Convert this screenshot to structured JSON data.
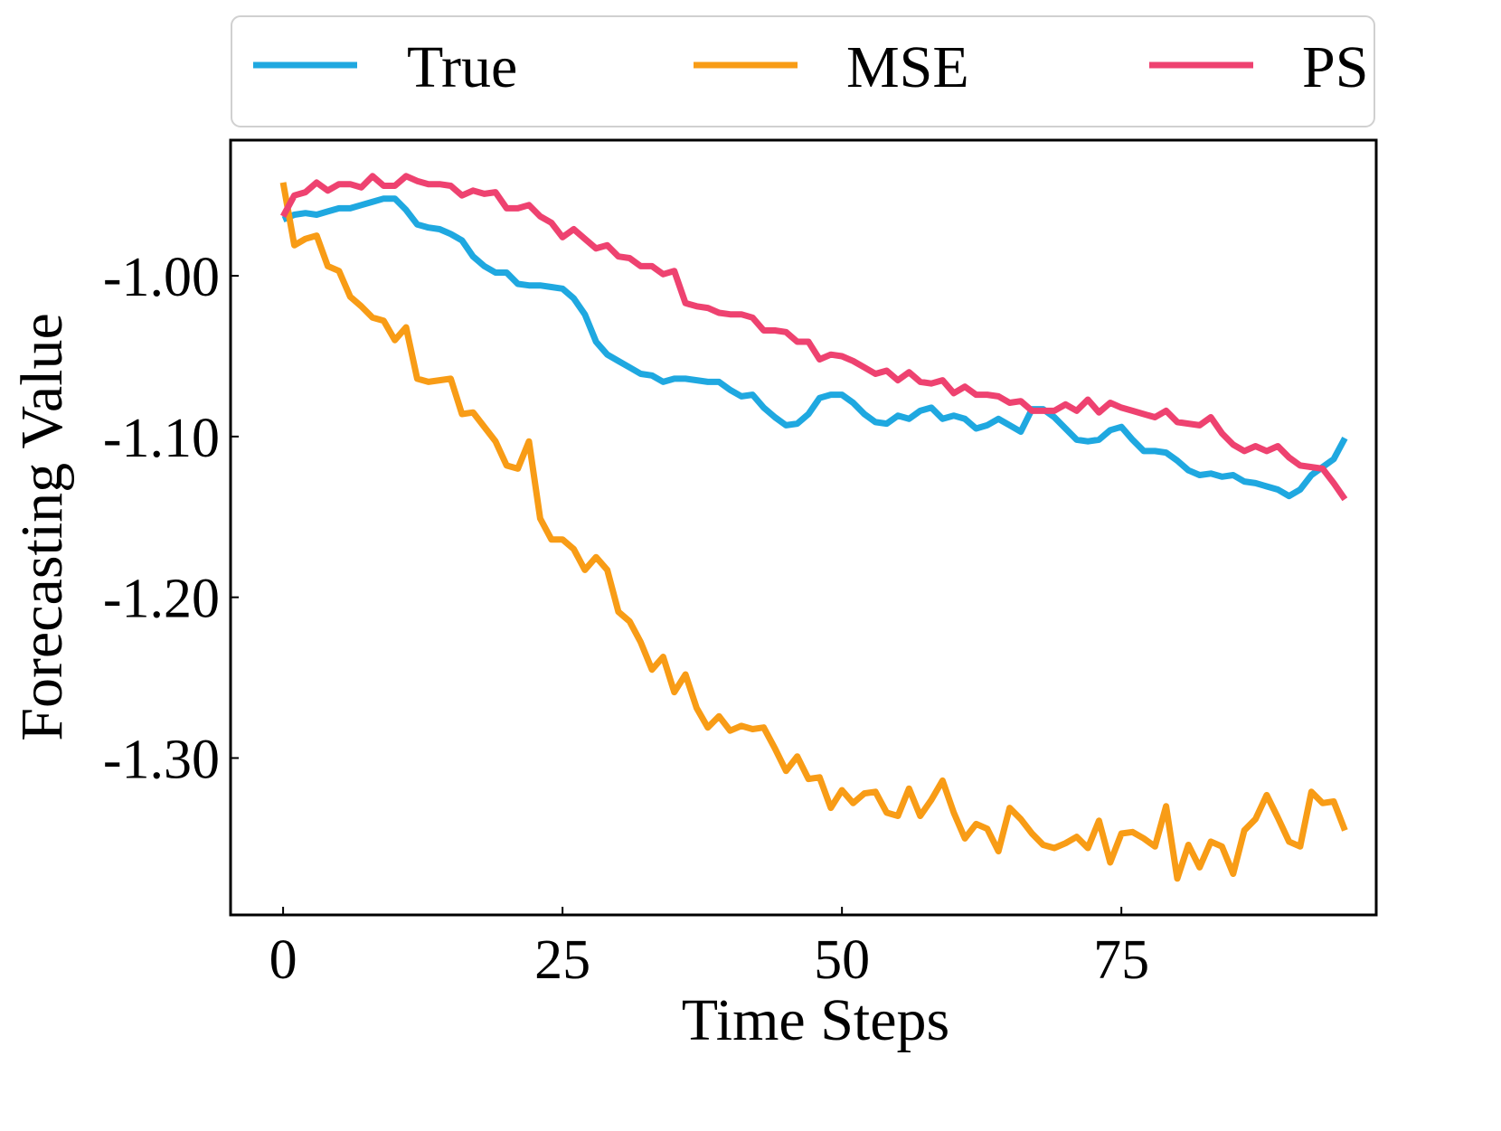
{
  "chart_data": {
    "type": "line",
    "title": "",
    "xlabel": "Time Steps",
    "ylabel": "Forecasting Value",
    "xlim": [
      -4.7,
      97.8
    ],
    "ylim": [
      -1.3976,
      -0.9156
    ],
    "xticks": [
      0,
      25,
      50,
      75
    ],
    "xtick_labels": [
      "0",
      "25",
      "50",
      "75"
    ],
    "yticks": [
      -1.0,
      -1.1,
      -1.2,
      -1.3
    ],
    "ytick_labels": [
      "-1.00",
      "-1.10",
      "-1.20",
      "-1.30"
    ],
    "grid": false,
    "legend": {
      "placement": "top-outside",
      "columns": 3
    },
    "x": [
      0,
      1,
      2,
      3,
      4,
      5,
      6,
      7,
      8,
      9,
      10,
      11,
      12,
      13,
      14,
      15,
      16,
      17,
      18,
      19,
      20,
      21,
      22,
      23,
      24,
      25,
      26,
      27,
      28,
      29,
      30,
      31,
      32,
      33,
      34,
      35,
      36,
      37,
      38,
      39,
      40,
      41,
      42,
      43,
      44,
      45,
      46,
      47,
      48,
      49,
      50,
      51,
      52,
      53,
      54,
      55,
      56,
      57,
      58,
      59,
      60,
      61,
      62,
      63,
      64,
      65,
      66,
      67,
      68,
      69,
      70,
      71,
      72,
      73,
      74,
      75,
      76,
      77,
      78,
      79,
      80,
      81,
      82,
      83,
      84,
      85,
      86,
      87,
      88,
      89,
      90,
      91,
      92,
      93,
      94,
      95
    ],
    "series": [
      {
        "name": "True",
        "color": "#1fa8e0",
        "values": [
          -0.965,
          -0.962,
          -0.961,
          -0.962,
          -0.96,
          -0.958,
          -0.958,
          -0.956,
          -0.954,
          -0.952,
          -0.952,
          -0.959,
          -0.968,
          -0.97,
          -0.971,
          -0.974,
          -0.978,
          -0.988,
          -0.994,
          -0.998,
          -0.998,
          -1.005,
          -1.006,
          -1.006,
          -1.007,
          -1.008,
          -1.014,
          -1.024,
          -1.041,
          -1.049,
          -1.053,
          -1.057,
          -1.061,
          -1.062,
          -1.066,
          -1.064,
          -1.064,
          -1.065,
          -1.066,
          -1.066,
          -1.071,
          -1.075,
          -1.074,
          -1.082,
          -1.088,
          -1.093,
          -1.092,
          -1.086,
          -1.076,
          -1.074,
          -1.074,
          -1.079,
          -1.086,
          -1.091,
          -1.092,
          -1.087,
          -1.089,
          -1.084,
          -1.082,
          -1.089,
          -1.087,
          -1.089,
          -1.095,
          -1.093,
          -1.089,
          -1.093,
          -1.097,
          -1.083,
          -1.083,
          -1.088,
          -1.095,
          -1.102,
          -1.103,
          -1.102,
          -1.096,
          -1.094,
          -1.102,
          -1.109,
          -1.109,
          -1.11,
          -1.115,
          -1.121,
          -1.124,
          -1.123,
          -1.125,
          -1.124,
          -1.128,
          -1.129,
          -1.131,
          -1.133,
          -1.137,
          -1.133,
          -1.124,
          -1.119,
          -1.114,
          -1.101
        ]
      },
      {
        "name": "MSE",
        "color": "#f89c16",
        "values": [
          -0.942,
          -0.981,
          -0.977,
          -0.975,
          -0.994,
          -0.997,
          -1.013,
          -1.019,
          -1.026,
          -1.028,
          -1.04,
          -1.032,
          -1.064,
          -1.066,
          -1.065,
          -1.064,
          -1.086,
          -1.085,
          -1.094,
          -1.103,
          -1.118,
          -1.12,
          -1.103,
          -1.151,
          -1.164,
          -1.164,
          -1.17,
          -1.183,
          -1.175,
          -1.183,
          -1.209,
          -1.215,
          -1.228,
          -1.245,
          -1.237,
          -1.259,
          -1.248,
          -1.269,
          -1.281,
          -1.274,
          -1.283,
          -1.28,
          -1.282,
          -1.281,
          -1.294,
          -1.308,
          -1.299,
          -1.313,
          -1.312,
          -1.331,
          -1.32,
          -1.328,
          -1.322,
          -1.321,
          -1.334,
          -1.336,
          -1.319,
          -1.336,
          -1.326,
          -1.314,
          -1.334,
          -1.35,
          -1.341,
          -1.344,
          -1.358,
          -1.331,
          -1.338,
          -1.347,
          -1.354,
          -1.356,
          -1.353,
          -1.349,
          -1.356,
          -1.339,
          -1.365,
          -1.347,
          -1.346,
          -1.35,
          -1.355,
          -1.33,
          -1.375,
          -1.354,
          -1.368,
          -1.352,
          -1.355,
          -1.372,
          -1.345,
          -1.338,
          -1.323,
          -1.337,
          -1.352,
          -1.355,
          -1.321,
          -1.328,
          -1.327,
          -1.345
        ]
      },
      {
        "name": "PS",
        "color": "#ee4270",
        "values": [
          -0.963,
          -0.95,
          -0.948,
          -0.942,
          -0.947,
          -0.943,
          -0.943,
          -0.945,
          -0.938,
          -0.944,
          -0.944,
          -0.938,
          -0.941,
          -0.943,
          -0.943,
          -0.944,
          -0.95,
          -0.947,
          -0.949,
          -0.948,
          -0.958,
          -0.958,
          -0.956,
          -0.963,
          -0.967,
          -0.976,
          -0.971,
          -0.977,
          -0.983,
          -0.981,
          -0.988,
          -0.989,
          -0.994,
          -0.994,
          -0.999,
          -0.997,
          -1.017,
          -1.019,
          -1.02,
          -1.023,
          -1.024,
          -1.024,
          -1.026,
          -1.034,
          -1.034,
          -1.035,
          -1.041,
          -1.041,
          -1.052,
          -1.049,
          -1.05,
          -1.053,
          -1.057,
          -1.061,
          -1.059,
          -1.065,
          -1.06,
          -1.066,
          -1.067,
          -1.065,
          -1.073,
          -1.069,
          -1.074,
          -1.074,
          -1.075,
          -1.079,
          -1.078,
          -1.084,
          -1.084,
          -1.084,
          -1.08,
          -1.084,
          -1.077,
          -1.085,
          -1.079,
          -1.082,
          -1.084,
          -1.086,
          -1.088,
          -1.084,
          -1.091,
          -1.092,
          -1.093,
          -1.088,
          -1.098,
          -1.105,
          -1.109,
          -1.106,
          -1.109,
          -1.106,
          -1.113,
          -1.118,
          -1.119,
          -1.12,
          -1.129,
          -1.139
        ]
      }
    ]
  }
}
